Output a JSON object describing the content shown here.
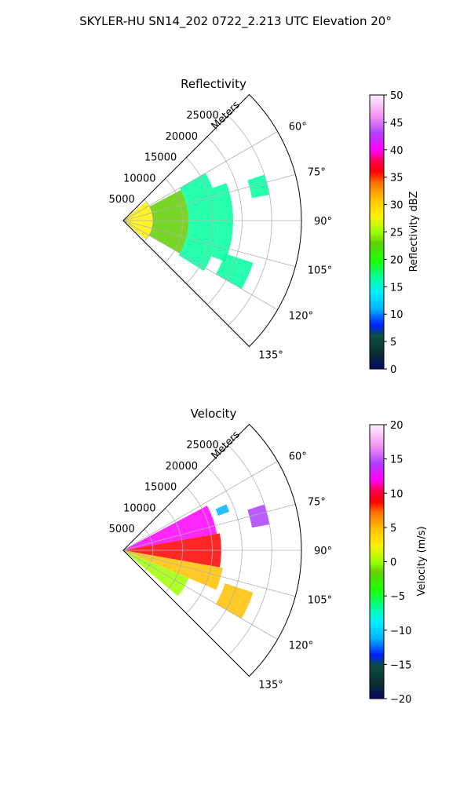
{
  "figure_title": "SKYLER-HU  SN14_202  0722_2.213 UTC Elevation 20°",
  "panels": [
    {
      "title": "Reflectivity",
      "range_axis_label": "Meters",
      "range_ticks": [
        "5000",
        "10000",
        "15000",
        "20000",
        "25000"
      ],
      "azimuth_ticks": [
        "60°",
        "75°",
        "90°",
        "105°",
        "120°",
        "135°"
      ],
      "colorbar_label": "Reflectivity dBZ",
      "colorbar_ticks": [
        "0",
        "5",
        "10",
        "15",
        "20",
        "25",
        "30",
        "35",
        "40",
        "45",
        "50"
      ]
    },
    {
      "title": "Velocity",
      "range_axis_label": "Meters",
      "range_ticks": [
        "5000",
        "10000",
        "15000",
        "20000",
        "25000"
      ],
      "azimuth_ticks": [
        "60°",
        "75°",
        "90°",
        "105°",
        "120°",
        "135°"
      ],
      "colorbar_label": "Velocity (m/s)",
      "colorbar_ticks": [
        "−20",
        "−15",
        "−10",
        "−5",
        "0",
        "5",
        "10",
        "15",
        "20"
      ]
    }
  ],
  "chart_data": [
    {
      "type": "heatmap",
      "projection": "polar-sector",
      "title": "Reflectivity",
      "azimuth_range_deg": [
        45,
        135
      ],
      "azimuth_ticks_deg": [
        60,
        75,
        90,
        105,
        120,
        135
      ],
      "range_m": [
        0,
        30000
      ],
      "range_ticks_m": [
        5000,
        10000,
        15000,
        20000,
        25000
      ],
      "colorbar": {
        "label": "Reflectivity dBZ",
        "min": 0,
        "max": 50
      },
      "grid": true,
      "echo_regions": [
        {
          "az": [
            50,
            130
          ],
          "r_m": [
            0,
            5000
          ],
          "value": 30
        },
        {
          "az": [
            62,
            120
          ],
          "r_m": [
            5000,
            11000
          ],
          "value": 24
        },
        {
          "az": [
            60,
            122
          ],
          "r_m": [
            11000,
            16000
          ],
          "value": 19
        },
        {
          "az": [
            70,
            112
          ],
          "r_m": [
            16000,
            18500
          ],
          "value": 17
        },
        {
          "az": [
            72,
            80
          ],
          "r_m": [
            22000,
            25000
          ],
          "value": 19
        },
        {
          "az": [
            108,
            120
          ],
          "r_m": [
            18000,
            23000
          ],
          "value": 17
        }
      ]
    },
    {
      "type": "heatmap",
      "projection": "polar-sector",
      "title": "Velocity",
      "azimuth_range_deg": [
        45,
        135
      ],
      "azimuth_ticks_deg": [
        60,
        75,
        90,
        105,
        120,
        135
      ],
      "range_m": [
        0,
        30000
      ],
      "range_ticks_m": [
        5000,
        10000,
        15000,
        20000,
        25000
      ],
      "colorbar": {
        "label": "Velocity (m/s)",
        "min": -20,
        "max": 20
      },
      "grid": true,
      "echo_regions": [
        {
          "az": [
            62,
            80
          ],
          "r_m": [
            0,
            16000
          ],
          "value": 14
        },
        {
          "az": [
            80,
            100
          ],
          "r_m": [
            0,
            16500
          ],
          "value": 9
        },
        {
          "az": [
            100,
            113
          ],
          "r_m": [
            0,
            17000
          ],
          "value": 6
        },
        {
          "az": [
            113,
            130
          ],
          "r_m": [
            0,
            12000
          ],
          "value": 1
        },
        {
          "az": [
            72,
            80
          ],
          "r_m": [
            22000,
            25000
          ],
          "value": 15
        },
        {
          "az": [
            66,
            70
          ],
          "r_m": [
            17000,
            19000
          ],
          "value": -11
        },
        {
          "az": [
            108,
            120
          ],
          "r_m": [
            18000,
            23000
          ],
          "value": 5
        }
      ]
    }
  ]
}
